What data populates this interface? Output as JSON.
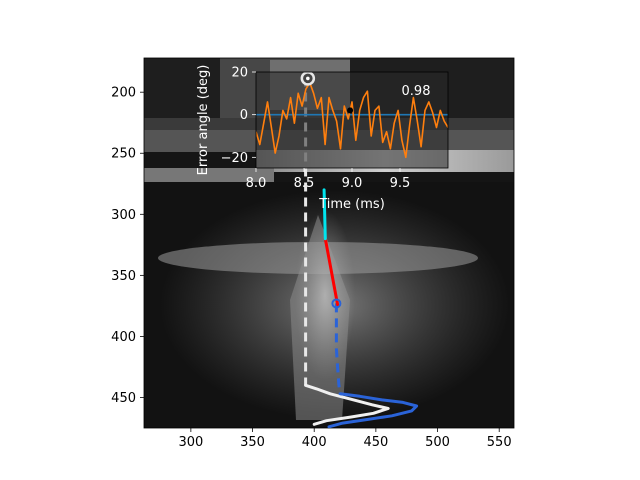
{
  "chart_data": [
    {
      "type": "image-overlay",
      "xlim": [
        262,
        562
      ],
      "ylim": [
        475,
        172
      ],
      "xticks": [
        300,
        350,
        400,
        450,
        500,
        550
      ],
      "yticks": [
        200,
        250,
        300,
        350,
        400,
        450
      ],
      "grid": false,
      "series": [
        {
          "color": "#e8e8e8",
          "style": "dashed",
          "x": [
            393,
            393,
            393,
            393,
            393,
            393,
            393
          ],
          "y": [
            188,
            230,
            270,
            310,
            360,
            410,
            440
          ]
        },
        {
          "color": "#f0f0f0",
          "style": "solid",
          "x": [
            393,
            402,
            413,
            432,
            447,
            460,
            448,
            430,
            410,
            400
          ],
          "y": [
            440,
            443,
            447,
            452,
            456,
            459,
            463,
            466,
            469,
            472
          ]
        },
        {
          "color": "#2a63d8",
          "style": "dashed",
          "x": [
            418,
            418,
            418,
            419,
            420,
            421
          ],
          "y": [
            373,
            390,
            410,
            425,
            440,
            447
          ]
        },
        {
          "color": "#2a63d8",
          "style": "solid",
          "x": [
            421,
            437,
            455,
            472,
            483,
            479,
            463,
            443,
            423,
            412
          ],
          "y": [
            447,
            449,
            452,
            454,
            457,
            461,
            465,
            468,
            471,
            474
          ]
        },
        {
          "color": "#ff0000",
          "style": "solid",
          "x": [
            409,
            419
          ],
          "y": [
            320,
            374
          ]
        },
        {
          "color": "#00e5ee",
          "style": "solid",
          "x": [
            408,
            409
          ],
          "y": [
            280,
            320
          ]
        }
      ],
      "markers": [
        {
          "color": "#e8e8e8",
          "x": 393,
          "y": 188
        },
        {
          "color": "#2a63d8",
          "x": 418,
          "y": 373
        }
      ]
    },
    {
      "type": "line",
      "xlabel": "Time (ms)",
      "ylabel": "Error angle (deg)",
      "xlim": [
        8.0,
        10.0
      ],
      "ylim": [
        -25,
        20
      ],
      "xticks": [
        8.0,
        8.5,
        9.0,
        9.5
      ],
      "xtick_labels": [
        "8.0",
        "8.5",
        "9.0",
        "9.5"
      ],
      "yticks": [
        -20,
        0,
        20
      ],
      "ytick_labels": [
        "−20",
        "0",
        "20"
      ],
      "annotation": "0.98",
      "grid": false,
      "series": [
        {
          "color": "#1f77b4",
          "x": [
            8.0,
            10.0
          ],
          "y": [
            0,
            0
          ]
        },
        {
          "color": "#ff7f0e",
          "x": [
            8.0,
            8.04,
            8.08,
            8.12,
            8.16,
            8.2,
            8.24,
            8.28,
            8.32,
            8.36,
            8.4,
            8.44,
            8.48,
            8.52,
            8.56,
            8.6,
            8.64,
            8.68,
            8.72,
            8.76,
            8.8,
            8.84,
            8.88,
            8.92,
            8.96,
            9.0,
            9.04,
            9.08,
            9.12,
            9.16,
            9.2,
            9.24,
            9.28,
            9.32,
            9.36,
            9.4,
            9.44,
            9.48,
            9.52,
            9.56,
            9.6,
            9.64,
            9.68,
            9.72,
            9.76,
            9.8,
            9.84,
            9.88,
            9.92,
            9.96,
            10.0
          ],
          "y": [
            -8,
            -14,
            -4,
            6,
            -6,
            -18,
            -10,
            2,
            -2,
            8,
            -4,
            10,
            4,
            12,
            15,
            10,
            3,
            8,
            -14,
            8,
            2,
            -3,
            -16,
            4,
            -2,
            6,
            -12,
            2,
            8,
            11,
            -10,
            2,
            4,
            -13,
            -8,
            -16,
            -4,
            2,
            -12,
            -20,
            -5,
            8,
            -3,
            -15,
            2,
            6,
            1,
            -6,
            2,
            -3,
            -6
          ]
        }
      ],
      "markers": [
        {
          "color": "#e8e8e8",
          "x": 8.54,
          "y": 17
        },
        {
          "color": "#000000",
          "x": 8.98,
          "y": 2
        }
      ]
    }
  ]
}
